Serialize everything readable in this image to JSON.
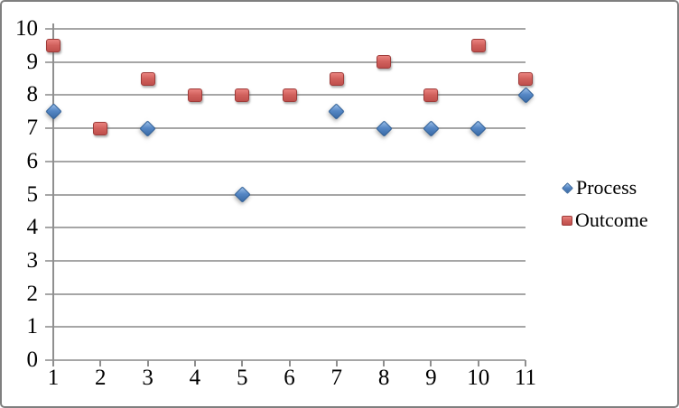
{
  "chart_data": {
    "type": "scatter",
    "x": [
      1,
      2,
      3,
      4,
      5,
      6,
      7,
      8,
      9,
      10,
      11
    ],
    "x_ticks": [
      "1",
      "2",
      "3",
      "4",
      "5",
      "6",
      "7",
      "8",
      "9",
      "10",
      "11"
    ],
    "y_ticks": [
      "0",
      "1",
      "2",
      "3",
      "4",
      "5",
      "6",
      "7",
      "8",
      "9",
      "10"
    ],
    "xlim": [
      1,
      11
    ],
    "ylim": [
      0,
      10
    ],
    "grid": "horizontal",
    "legend_position": "right",
    "series": [
      {
        "name": "Process",
        "marker": "diamond",
        "color": "#4F81BD",
        "values": [
          7.5,
          null,
          7,
          null,
          5,
          null,
          7.5,
          7,
          7,
          7,
          8
        ]
      },
      {
        "name": "Outcome",
        "marker": "square",
        "color": "#C0504D",
        "values": [
          9.5,
          7,
          8.5,
          8,
          8,
          8,
          8.5,
          9,
          8,
          9.5,
          8.5
        ]
      }
    ]
  },
  "legend": {
    "items": [
      {
        "label": "Process",
        "marker": "diamond-icon"
      },
      {
        "label": "Outcome",
        "marker": "square-icon"
      }
    ]
  },
  "colors": {
    "process_fill": "#4F81BD",
    "outcome_fill": "#C0504D",
    "gridline": "#A6A6A6",
    "axis": "#8F8F8F",
    "text": "#000000",
    "frame_border": "#7F7F7F"
  }
}
